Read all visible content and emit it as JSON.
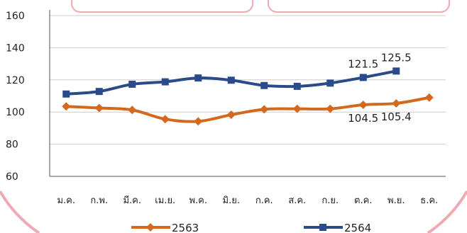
{
  "colors": {
    "frame_pink": "#f0aab4",
    "series_2563": "#d2691e",
    "series_2564": "#2a4a8a",
    "axis": "#555555",
    "grid": "#cccccc"
  },
  "chart_data": {
    "type": "line",
    "title": "",
    "xlabel": "",
    "ylabel": "",
    "ylim": [
      60,
      160
    ],
    "yticks": [
      60,
      80,
      100,
      120,
      140,
      160
    ],
    "grid": true,
    "legend_position": "bottom",
    "categories": [
      "ม.ค.",
      "ก.พ.",
      "มี.ค.",
      "เม.ย.",
      "พ.ค.",
      "มิ.ย.",
      "ก.ค.",
      "ส.ค.",
      "ก.ย.",
      "ต.ค.",
      "พ.ย.",
      "ธ.ค."
    ],
    "series": [
      {
        "name": "2563",
        "marker": "diamond",
        "color": "#d2691e",
        "values": [
          103.5,
          102.5,
          101.3,
          95.6,
          94.2,
          98.3,
          101.7,
          102.0,
          102.0,
          104.5,
          105.4,
          109.0
        ]
      },
      {
        "name": "2564",
        "marker": "square",
        "color": "#2a4a8a",
        "values": [
          111.2,
          112.8,
          117.3,
          118.8,
          121.2,
          119.8,
          116.5,
          116.0,
          118.0,
          121.5,
          125.5,
          null
        ]
      }
    ],
    "annotations": [
      {
        "series": "2564",
        "index": 9,
        "text": "121.5",
        "placement": "above"
      },
      {
        "series": "2564",
        "index": 10,
        "text": "125.5",
        "placement": "above"
      },
      {
        "series": "2563",
        "index": 9,
        "text": "104.5",
        "placement": "below"
      },
      {
        "series": "2563",
        "index": 10,
        "text": "105.4",
        "placement": "below"
      }
    ]
  }
}
